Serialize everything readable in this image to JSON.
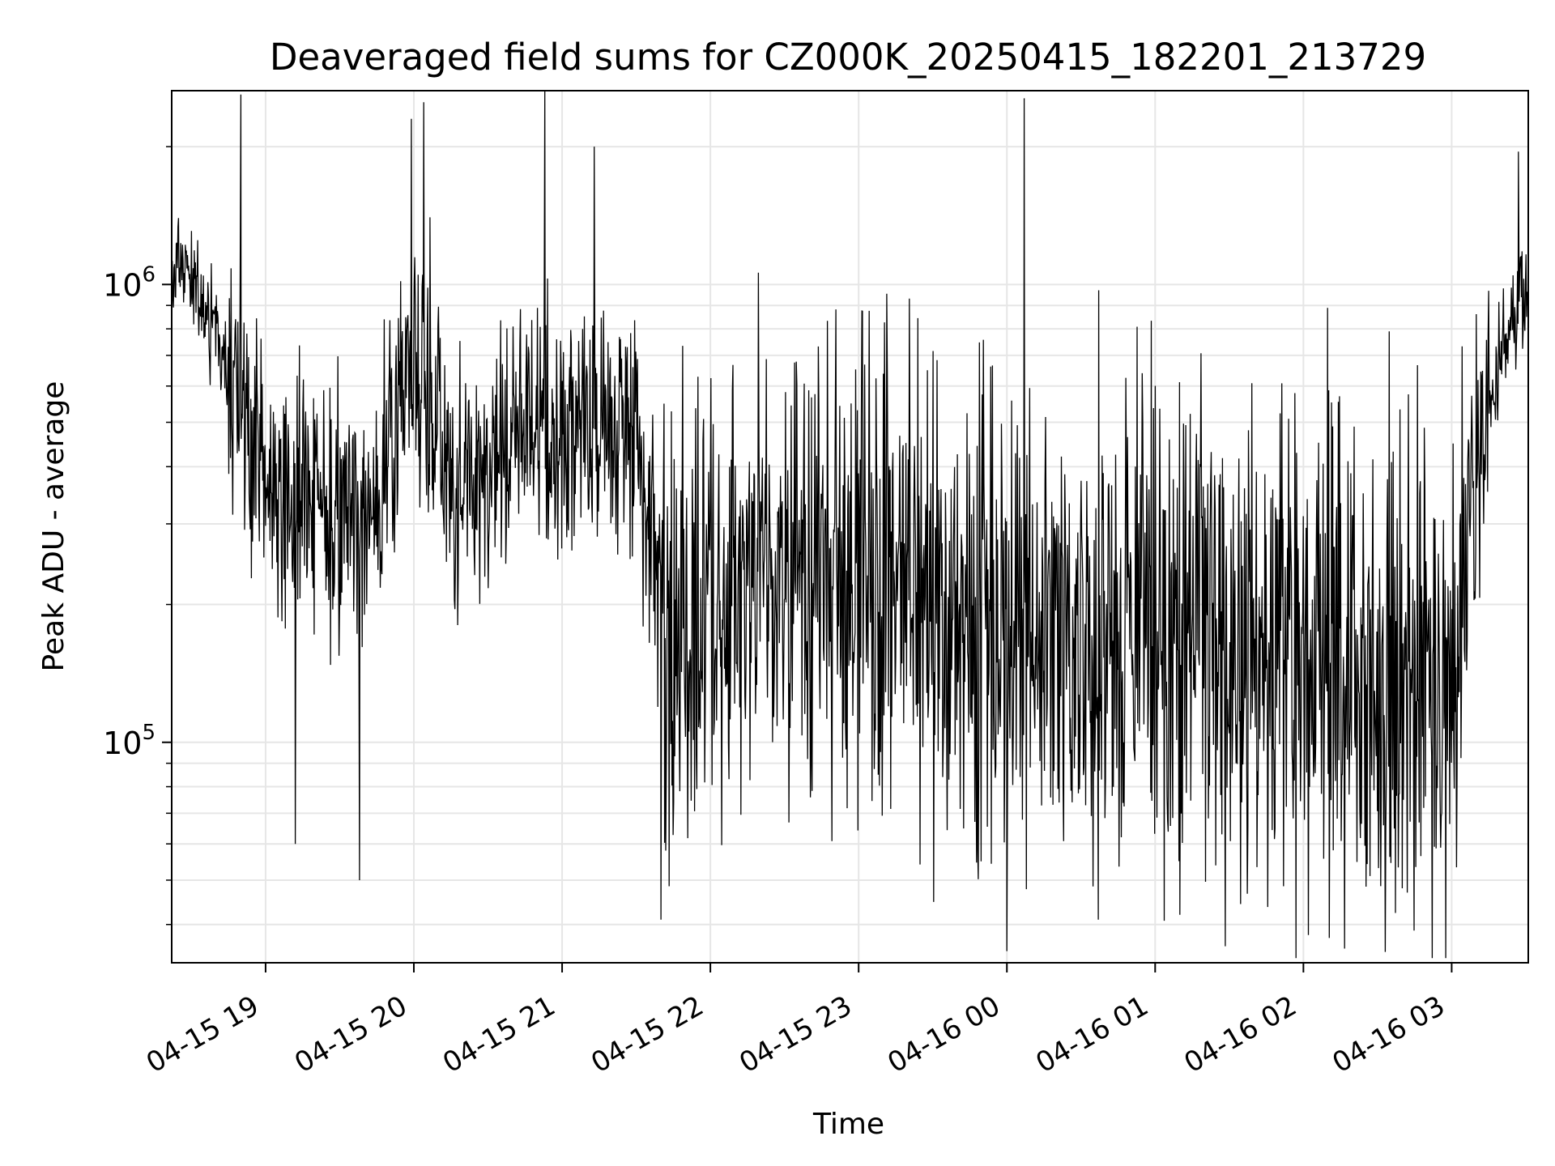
{
  "chart_data": {
    "type": "line",
    "title": "Deaveraged field sums for CZ000K_20250415_182201_213729",
    "xlabel": "Time",
    "ylabel": "Peak ADU - average",
    "yscale": "log",
    "xlim": [
      "2025-04-15 18:22",
      "2025-04-16 03:31"
    ],
    "ylim": [
      33000,
      2650000
    ],
    "grid": true,
    "line_color": "#000000",
    "x_ticks": [
      {
        "value": "2025-04-15 19:00",
        "label": "04-15 19"
      },
      {
        "value": "2025-04-15 20:00",
        "label": "04-15 20"
      },
      {
        "value": "2025-04-15 21:00",
        "label": "04-15 21"
      },
      {
        "value": "2025-04-15 22:00",
        "label": "04-15 22"
      },
      {
        "value": "2025-04-15 23:00",
        "label": "04-15 23"
      },
      {
        "value": "2025-04-16 00:00",
        "label": "04-16 00"
      },
      {
        "value": "2025-04-16 01:00",
        "label": "04-16 01"
      },
      {
        "value": "2025-04-16 02:00",
        "label": "04-16 02"
      },
      {
        "value": "2025-04-16 03:00",
        "label": "04-16 03"
      }
    ],
    "y_ticks": [
      {
        "value": 100000,
        "base": "10",
        "exp": "5"
      },
      {
        "value": 1000000,
        "base": "10",
        "exp": "6"
      }
    ],
    "series": [
      {
        "x": [
          "2025-04-15 18:22",
          "2025-04-15 18:30",
          "2025-04-15 18:40",
          "2025-04-15 18:50",
          "2025-04-15 19:00",
          "2025-04-15 19:15",
          "2025-04-15 19:30",
          "2025-04-15 19:45",
          "2025-04-15 19:55",
          "2025-04-15 20:05",
          "2025-04-15 20:15",
          "2025-04-15 20:30",
          "2025-04-15 20:45",
          "2025-04-15 21:00",
          "2025-04-15 21:15",
          "2025-04-15 21:30",
          "2025-04-15 21:45",
          "2025-04-15 22:00",
          "2025-04-15 22:30",
          "2025-04-15 23:00",
          "2025-04-15 23:30",
          "2025-04-16 00:00",
          "2025-04-16 00:30",
          "2025-04-16 01:00",
          "2025-04-16 01:30",
          "2025-04-16 02:00",
          "2025-04-16 02:30",
          "2025-04-16 02:50",
          "2025-04-16 03:00",
          "2025-04-16 03:10",
          "2025-04-16 03:20",
          "2025-04-16 03:31"
        ],
        "y": [
          1100000,
          1000000,
          800000,
          550000,
          350000,
          330000,
          320000,
          330000,
          550000,
          650000,
          350000,
          400000,
          500000,
          450000,
          520000,
          500000,
          120000,
          200000,
          250000,
          220000,
          200000,
          180000,
          160000,
          170000,
          170000,
          180000,
          130000,
          150000,
          160000,
          400000,
          700000,
          1000000
        ]
      }
    ],
    "annotations": {
      "peaks": [
        {
          "x": "2025-04-15 18:50",
          "y": 2600000
        },
        {
          "x": "2025-04-15 19:59",
          "y": 2300000
        },
        {
          "x": "2025-04-15 20:04",
          "y": 2500000
        },
        {
          "x": "2025-04-15 20:53",
          "y": 2650000
        },
        {
          "x": "2025-04-15 21:13",
          "y": 2000000
        },
        {
          "x": "2025-04-16 00:07",
          "y": 2550000
        },
        {
          "x": "2025-04-16 03:27",
          "y": 1950000
        }
      ],
      "troughs": [
        {
          "x": "2025-04-15 19:12",
          "y": 60000
        },
        {
          "x": "2025-04-15 19:38",
          "y": 50000
        },
        {
          "x": "2025-04-15 21:40",
          "y": 41000
        },
        {
          "x": "2025-04-16 00:00",
          "y": 35000
        },
        {
          "x": "2025-04-16 00:37",
          "y": 41000
        },
        {
          "x": "2025-04-16 01:10",
          "y": 42000
        },
        {
          "x": "2025-04-16 02:40",
          "y": 48000
        }
      ]
    }
  }
}
